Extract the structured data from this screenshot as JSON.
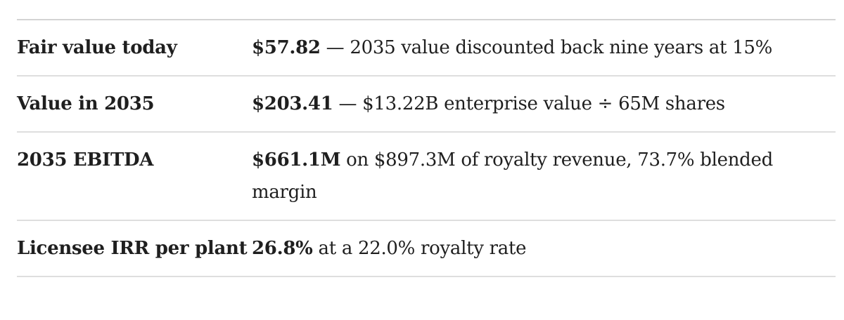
{
  "rows": [
    {
      "label": "Fair value today",
      "value": "$57.82",
      "separator": " — ",
      "detail": "2035 value discounted back nine years at 15%"
    },
    {
      "label": "Value in 2035",
      "value": "$203.41",
      "separator": " — ",
      "detail": "$13.22B enterprise value ÷ 65M shares"
    },
    {
      "label": "2035 EBITDA",
      "value": "$661.1M",
      "separator": " ",
      "detail": "on $897.3M of royalty revenue, 73.7% blended margin"
    },
    {
      "label": "Licensee IRR per plant",
      "value": "26.8%",
      "separator": " ",
      "detail": "at a 22.0% royalty rate"
    }
  ]
}
